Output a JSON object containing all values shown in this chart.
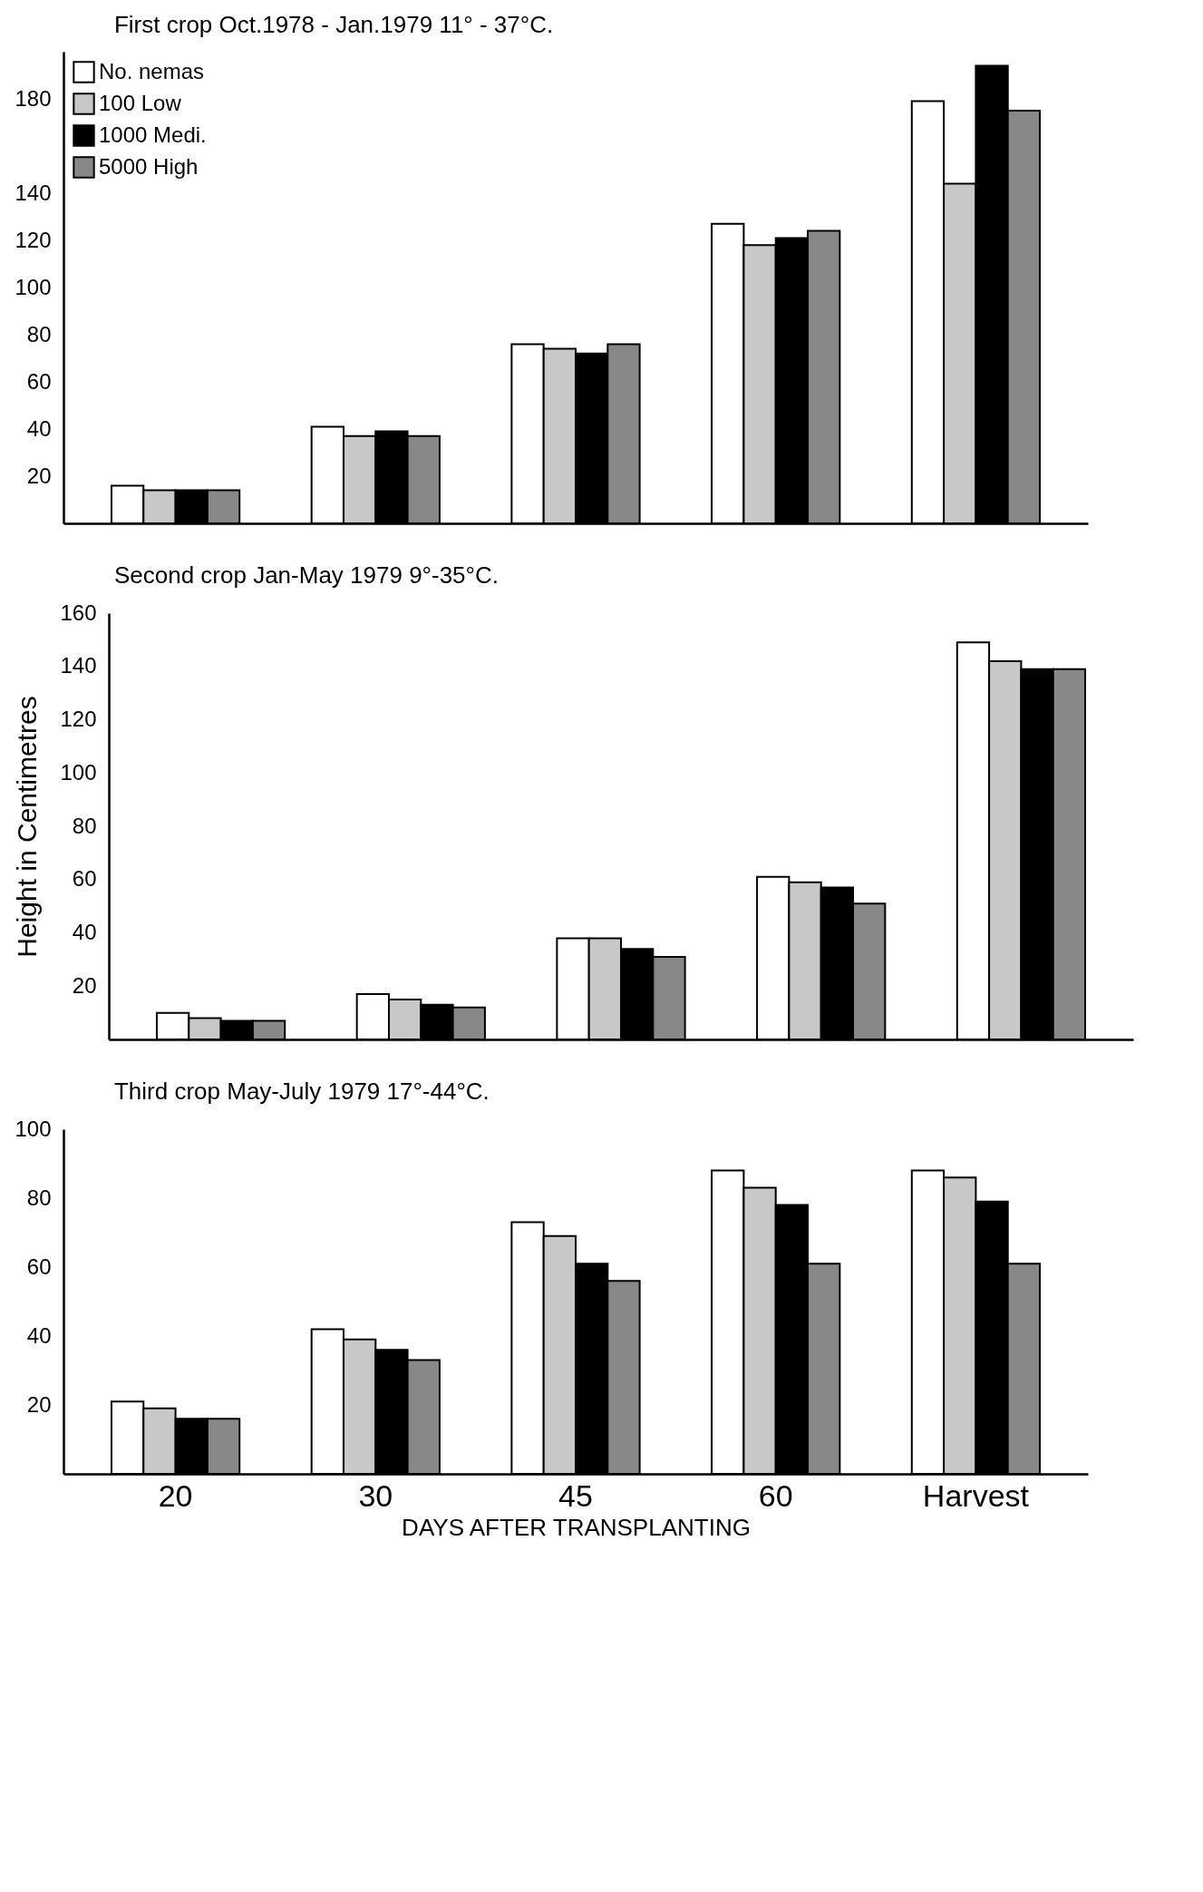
{
  "chart_data": [
    {
      "type": "bar",
      "title": "First crop   Oct.1978 - Jan.1979    11° - 37°C.",
      "categories": [
        null,
        null,
        null,
        null,
        null
      ],
      "ylim": [
        0,
        200
      ],
      "yticks": [
        20,
        40,
        60,
        80,
        100,
        120,
        140,
        180
      ],
      "tick_labels": "y",
      "legend": "top left",
      "grid": false,
      "series": [
        {
          "name": "No. nemas",
          "color": "#ffffff",
          "values": [
            16,
            41,
            76,
            127,
            179
          ]
        },
        {
          "name": "100 Low",
          "color": "#c8c8c8",
          "values": [
            14,
            37,
            74,
            118,
            144
          ]
        },
        {
          "name": "1000 Medi.",
          "color": "#000000",
          "values": [
            14,
            39,
            72,
            121,
            194
          ]
        },
        {
          "name": "5000 High",
          "color": "#888888",
          "values": [
            14,
            37,
            76,
            124,
            175
          ]
        }
      ]
    },
    {
      "type": "bar",
      "title": "Second crop   Jan-May 1979    9°-35°C.",
      "ylabel": "Height in Centimetres",
      "categories": [
        null,
        null,
        null,
        null,
        null
      ],
      "ylim": [
        0,
        160
      ],
      "yticks": [
        20,
        40,
        60,
        80,
        100,
        120,
        140,
        160
      ],
      "tick_labels": "y",
      "grid": false,
      "series": [
        {
          "color": "#ffffff",
          "values": [
            10,
            17,
            38,
            61,
            149
          ]
        },
        {
          "color": "#c8c8c8",
          "values": [
            8,
            15,
            38,
            59,
            142
          ]
        },
        {
          "color": "#000000",
          "values": [
            7,
            13,
            34,
            57,
            139
          ]
        },
        {
          "color": "#888888",
          "values": [
            7,
            12,
            31,
            51,
            139
          ]
        }
      ]
    },
    {
      "type": "bar",
      "title": "Third crop   May-July 1979    17°-44°C.",
      "xlabel": "DAYS AFTER TRANSPLANTING",
      "categories": [
        "20",
        "30",
        "45",
        "60",
        "Harvest"
      ],
      "ylim": [
        0,
        100
      ],
      "yticks": [
        20,
        40,
        60,
        80,
        100
      ],
      "grid": false,
      "series": [
        {
          "color": "#ffffff",
          "values": [
            21,
            42,
            73,
            88,
            88
          ]
        },
        {
          "color": "#c8c8c8",
          "values": [
            19,
            39,
            69,
            83,
            86
          ]
        },
        {
          "color": "#000000",
          "values": [
            16,
            36,
            61,
            78,
            79
          ]
        },
        {
          "color": "#888888",
          "values": [
            16,
            33,
            56,
            61,
            61
          ]
        }
      ]
    }
  ]
}
